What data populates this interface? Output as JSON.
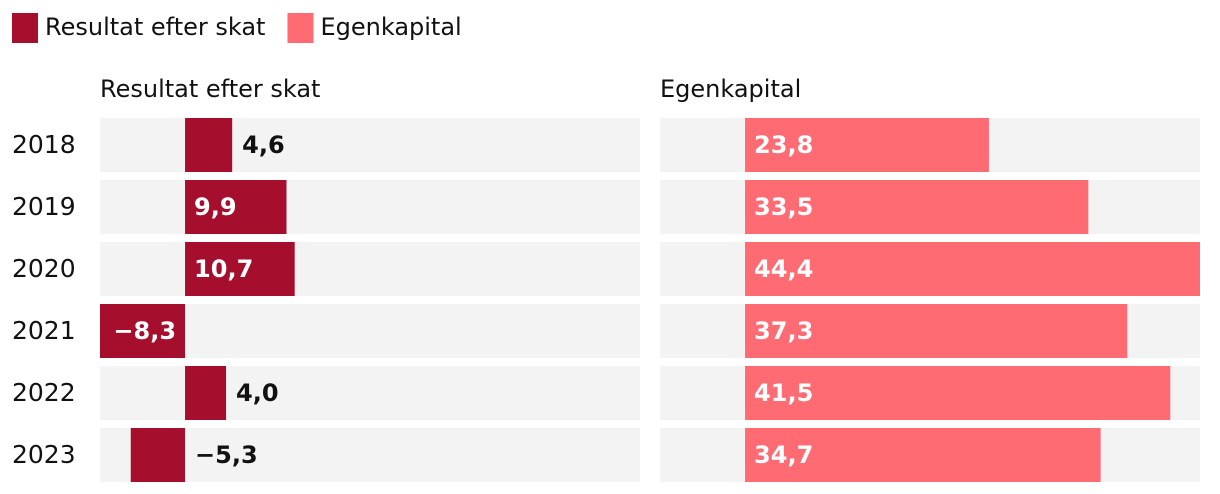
{
  "chart_data": {
    "type": "split-bar",
    "categories": [
      "2018",
      "2019",
      "2020",
      "2021",
      "2022",
      "2023"
    ],
    "series": [
      {
        "name": "Resultat efter skat",
        "color": "#a50f2d",
        "values": [
          4.6,
          9.9,
          10.7,
          -8.3,
          4.0,
          -5.3
        ],
        "value_labels": [
          "4,6",
          "9,9",
          "10,7",
          "−8,3",
          "4,0",
          "−5,3"
        ]
      },
      {
        "name": "Egenkapital",
        "color": "#ff6b73",
        "values": [
          23.8,
          33.5,
          44.4,
          37.3,
          41.5,
          34.7
        ],
        "value_labels": [
          "23,8",
          "33,5",
          "44,4",
          "37,3",
          "41,5",
          "34,7"
        ]
      }
    ],
    "xlim": [
      -8.3,
      44.4
    ]
  }
}
